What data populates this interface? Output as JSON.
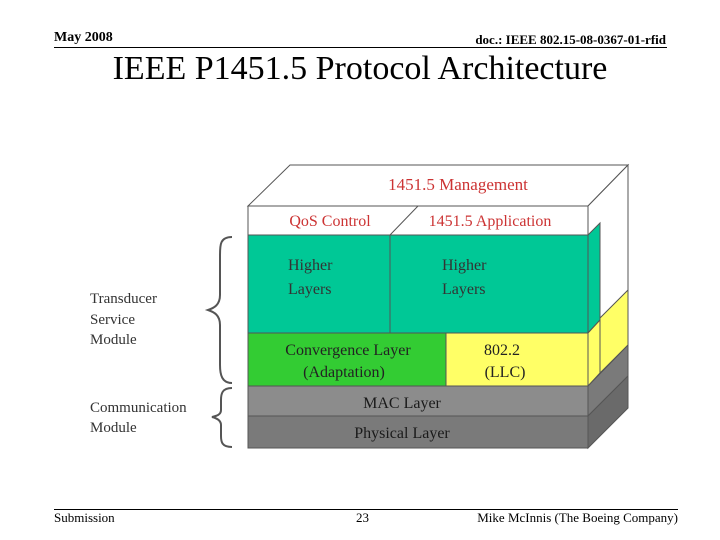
{
  "header": {
    "date": "May 2008",
    "doc_id": "doc.: IEEE 802.15-08-0367-01-rfid"
  },
  "slide": {
    "title": "IEEE P1451.5 Protocol Architecture"
  },
  "diagram": {
    "management": "1451.5 Management",
    "qos_control": "QoS Control",
    "application": "1451.5 Application",
    "higher_left_1": "Higher",
    "higher_left_2": "Layers",
    "higher_right_1": "Higher",
    "higher_right_2": "Layers",
    "convergence_1": "Convergence Layer",
    "convergence_2": "(Adaptation)",
    "llc_1": "802.2",
    "llc_2": "(LLC)",
    "mac": "MAC Layer",
    "physical": "Physical Layer",
    "tsm_1": "Transducer",
    "tsm_2": "Service",
    "tsm_3": "Module",
    "cm_1": "Communication",
    "cm_2": "Module",
    "colors": {
      "higher": "#00c896",
      "convergence": "#33cc33",
      "llc": "#ffff66",
      "mac": "#8c8c8c",
      "physical": "#7a7a7a",
      "top_text": "#cc3333"
    }
  },
  "footer": {
    "submission": "Submission",
    "page_number": "23",
    "author": "Mike McInnis (The Boeing Company)"
  }
}
